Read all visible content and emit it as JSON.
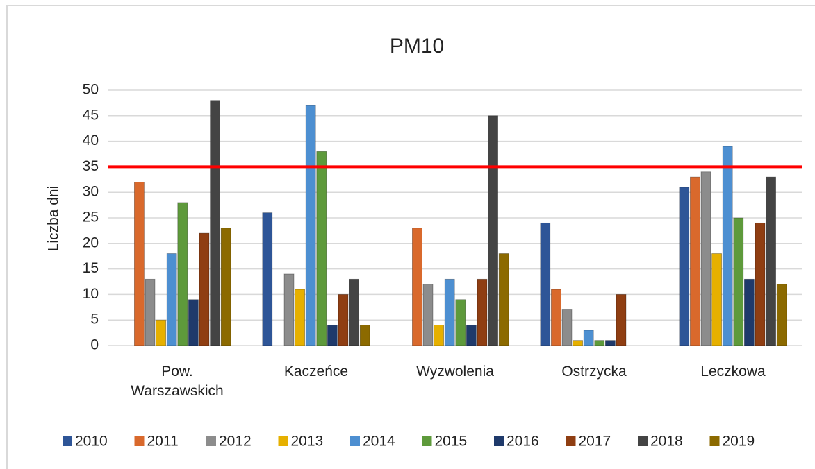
{
  "chart_data": {
    "type": "bar",
    "title": "PM10",
    "y_label": "Liczba dni",
    "categories": [
      "Pow. Warszawskich",
      "Kaczeńce",
      "Wyzwolenia",
      "Ostrzycka",
      "Leczkowa"
    ],
    "series": [
      {
        "name": "2010",
        "color": "#2e5597",
        "values": [
          null,
          26,
          null,
          24,
          31
        ]
      },
      {
        "name": "2011",
        "color": "#d9692c",
        "values": [
          32,
          null,
          23,
          11,
          33
        ]
      },
      {
        "name": "2012",
        "color": "#8c8c8c",
        "values": [
          13,
          14,
          12,
          7,
          34
        ]
      },
      {
        "name": "2013",
        "color": "#e6b000",
        "values": [
          5,
          11,
          4,
          1,
          18
        ]
      },
      {
        "name": "2014",
        "color": "#4d8fd1",
        "values": [
          18,
          47,
          13,
          3,
          39
        ]
      },
      {
        "name": "2015",
        "color": "#5e9a3b",
        "values": [
          28,
          38,
          9,
          1,
          25
        ]
      },
      {
        "name": "2016",
        "color": "#1f3a6b",
        "values": [
          9,
          4,
          4,
          1,
          13
        ]
      },
      {
        "name": "2017",
        "color": "#8f3e12",
        "values": [
          22,
          10,
          13,
          10,
          24
        ]
      },
      {
        "name": "2018",
        "color": "#444444",
        "values": [
          48,
          13,
          45,
          null,
          33
        ]
      },
      {
        "name": "2019",
        "color": "#8c6a00",
        "values": [
          23,
          4,
          18,
          null,
          12
        ]
      }
    ],
    "ylim": [
      0,
      50
    ],
    "yticks": [
      0,
      5,
      10,
      15,
      20,
      25,
      30,
      35,
      40,
      45,
      50
    ],
    "grid": true,
    "reference_line": {
      "value": 35,
      "color": "#ff0000"
    }
  }
}
